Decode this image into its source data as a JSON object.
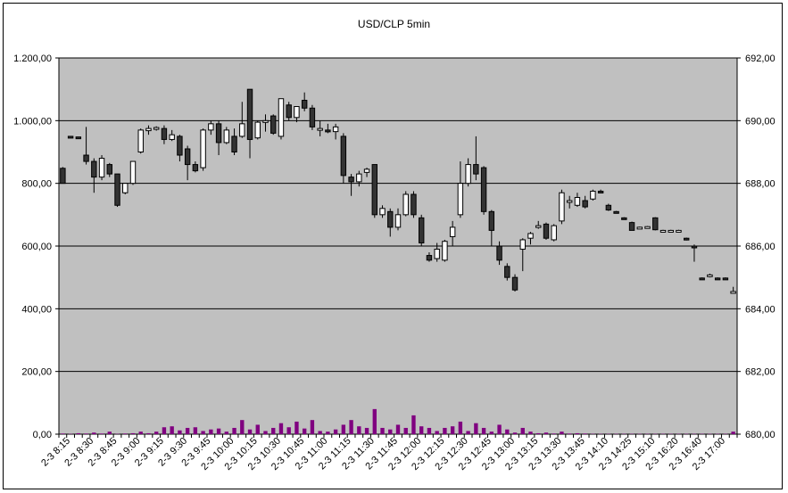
{
  "chart_data": {
    "type": "candlestick",
    "title": "USD/CLP  5min",
    "y_left": {
      "min": 0,
      "max": 1200,
      "step": 200,
      "tick_labels": [
        "0,00",
        "200,00",
        "400,00",
        "600,00",
        "800,00",
        "1.000,00",
        "1.200,00"
      ]
    },
    "y_right": {
      "min": 680,
      "max": 692,
      "step": 2,
      "tick_labels": [
        "680,00",
        "682,00",
        "684,00",
        "686,00",
        "688,00",
        "690,00",
        "692,00"
      ]
    },
    "grid": true,
    "plot_background": "#c0c0c0",
    "colors": {
      "up": "#ffffff",
      "down": "#333333",
      "volume": "#800080"
    },
    "x_tick_labels": [
      "2-3 8:15",
      "2-3 8:30",
      "2-3 8:45",
      "2-3 9:00",
      "2-3 9:15",
      "2-3 9:30",
      "2-3 9:45",
      "2-3 10:00",
      "2-3 10:15",
      "2-3 10:30",
      "2-3 10:45",
      "2-3 11:00",
      "2-3 11:15",
      "2-3 11:30",
      "2-3 11:45",
      "2-3 12:00",
      "2-3 12:15",
      "2-3 12:30",
      "2-3 12:45",
      "2-3 13:00",
      "2-3 13:15",
      "2-3 13:30",
      "2-3 13:45",
      "2-3 14:10",
      "2-3 14:25",
      "2-3 15:10",
      "2-3 16:20",
      "2-3 16:40",
      "2-3 17:00"
    ],
    "candles": [
      {
        "o": 848,
        "h": 852,
        "l": 800,
        "c": 800
      },
      {
        "o": 950,
        "h": 950,
        "l": 948,
        "c": 948
      },
      {
        "o": 948,
        "h": 948,
        "l": 946,
        "c": 946
      },
      {
        "o": 890,
        "h": 980,
        "l": 860,
        "c": 870
      },
      {
        "o": 870,
        "h": 880,
        "l": 770,
        "c": 820
      },
      {
        "o": 820,
        "h": 890,
        "l": 810,
        "c": 880
      },
      {
        "o": 860,
        "h": 865,
        "l": 820,
        "c": 830
      },
      {
        "o": 830,
        "h": 830,
        "l": 725,
        "c": 730
      },
      {
        "o": 770,
        "h": 800,
        "l": 765,
        "c": 800
      },
      {
        "o": 800,
        "h": 870,
        "l": 795,
        "c": 870
      },
      {
        "o": 900,
        "h": 975,
        "l": 895,
        "c": 970
      },
      {
        "o": 968,
        "h": 985,
        "l": 955,
        "c": 975
      },
      {
        "o": 975,
        "h": 982,
        "l": 968,
        "c": 978
      },
      {
        "o": 975,
        "h": 985,
        "l": 925,
        "c": 940
      },
      {
        "o": 940,
        "h": 970,
        "l": 935,
        "c": 955
      },
      {
        "o": 950,
        "h": 955,
        "l": 870,
        "c": 890
      },
      {
        "o": 910,
        "h": 920,
        "l": 810,
        "c": 860
      },
      {
        "o": 860,
        "h": 870,
        "l": 835,
        "c": 840
      },
      {
        "o": 850,
        "h": 975,
        "l": 840,
        "c": 970
      },
      {
        "o": 970,
        "h": 1000,
        "l": 955,
        "c": 990
      },
      {
        "o": 990,
        "h": 1000,
        "l": 890,
        "c": 930
      },
      {
        "o": 930,
        "h": 980,
        "l": 925,
        "c": 970
      },
      {
        "o": 950,
        "h": 975,
        "l": 890,
        "c": 900
      },
      {
        "o": 950,
        "h": 1060,
        "l": 945,
        "c": 990
      },
      {
        "o": 1100,
        "h": 1100,
        "l": 880,
        "c": 940
      },
      {
        "o": 945,
        "h": 1000,
        "l": 940,
        "c": 995
      },
      {
        "o": 995,
        "h": 1020,
        "l": 965,
        "c": 1000
      },
      {
        "o": 1015,
        "h": 1020,
        "l": 955,
        "c": 960
      },
      {
        "o": 950,
        "h": 1070,
        "l": 940,
        "c": 1070
      },
      {
        "o": 1050,
        "h": 1060,
        "l": 1000,
        "c": 1010
      },
      {
        "o": 1010,
        "h": 1045,
        "l": 995,
        "c": 1045
      },
      {
        "o": 1065,
        "h": 1090,
        "l": 1030,
        "c": 1040
      },
      {
        "o": 1040,
        "h": 1050,
        "l": 970,
        "c": 980
      },
      {
        "o": 975,
        "h": 1000,
        "l": 950,
        "c": 975
      },
      {
        "o": 970,
        "h": 990,
        "l": 960,
        "c": 965
      },
      {
        "o": 965,
        "h": 990,
        "l": 940,
        "c": 980
      },
      {
        "o": 950,
        "h": 960,
        "l": 800,
        "c": 825
      },
      {
        "o": 820,
        "h": 830,
        "l": 760,
        "c": 805
      },
      {
        "o": 805,
        "h": 840,
        "l": 790,
        "c": 830
      },
      {
        "o": 835,
        "h": 850,
        "l": 820,
        "c": 845
      },
      {
        "o": 860,
        "h": 860,
        "l": 690,
        "c": 700
      },
      {
        "o": 700,
        "h": 730,
        "l": 690,
        "c": 720
      },
      {
        "o": 710,
        "h": 720,
        "l": 630,
        "c": 660
      },
      {
        "o": 660,
        "h": 720,
        "l": 650,
        "c": 700
      },
      {
        "o": 700,
        "h": 775,
        "l": 695,
        "c": 765
      },
      {
        "o": 765,
        "h": 775,
        "l": 690,
        "c": 700
      },
      {
        "o": 690,
        "h": 700,
        "l": 600,
        "c": 610
      },
      {
        "o": 570,
        "h": 580,
        "l": 550,
        "c": 555
      },
      {
        "o": 560,
        "h": 610,
        "l": 550,
        "c": 590
      },
      {
        "o": 555,
        "h": 620,
        "l": 550,
        "c": 615
      },
      {
        "o": 630,
        "h": 680,
        "l": 600,
        "c": 660
      },
      {
        "o": 700,
        "h": 870,
        "l": 690,
        "c": 800
      },
      {
        "o": 800,
        "h": 880,
        "l": 790,
        "c": 860
      },
      {
        "o": 860,
        "h": 950,
        "l": 810,
        "c": 830
      },
      {
        "o": 850,
        "h": 855,
        "l": 700,
        "c": 710
      },
      {
        "o": 710,
        "h": 715,
        "l": 600,
        "c": 650
      },
      {
        "o": 600,
        "h": 615,
        "l": 540,
        "c": 555
      },
      {
        "o": 535,
        "h": 545,
        "l": 490,
        "c": 500
      },
      {
        "o": 500,
        "h": 510,
        "l": 455,
        "c": 460
      },
      {
        "o": 590,
        "h": 625,
        "l": 520,
        "c": 620
      },
      {
        "o": 625,
        "h": 645,
        "l": 605,
        "c": 640
      },
      {
        "o": 660,
        "h": 680,
        "l": 655,
        "c": 665
      },
      {
        "o": 670,
        "h": 675,
        "l": 620,
        "c": 625
      },
      {
        "o": 620,
        "h": 670,
        "l": 615,
        "c": 665
      },
      {
        "o": 680,
        "h": 780,
        "l": 670,
        "c": 770
      },
      {
        "o": 745,
        "h": 760,
        "l": 720,
        "c": 745
      },
      {
        "o": 730,
        "h": 770,
        "l": 725,
        "c": 755
      },
      {
        "o": 745,
        "h": 760,
        "l": 720,
        "c": 725
      },
      {
        "o": 750,
        "h": 780,
        "l": 745,
        "c": 775
      },
      {
        "o": 775,
        "h": 780,
        "l": 770,
        "c": 772
      },
      {
        "o": 730,
        "h": 735,
        "l": 712,
        "c": 715
      },
      {
        "o": 710,
        "h": 712,
        "l": 705,
        "c": 708
      },
      {
        "o": 690,
        "h": 692,
        "l": 686,
        "c": 688
      },
      {
        "o": 675,
        "h": 678,
        "l": 650,
        "c": 650
      },
      {
        "o": 660,
        "h": 662,
        "l": 658,
        "c": 660
      },
      {
        "o": 662,
        "h": 664,
        "l": 660,
        "c": 662
      },
      {
        "o": 690,
        "h": 692,
        "l": 650,
        "c": 652
      },
      {
        "o": 650,
        "h": 652,
        "l": 648,
        "c": 650
      },
      {
        "o": 650,
        "h": 652,
        "l": 648,
        "c": 650
      },
      {
        "o": 650,
        "h": 652,
        "l": 648,
        "c": 650
      },
      {
        "o": 625,
        "h": 627,
        "l": 618,
        "c": 620
      },
      {
        "o": 600,
        "h": 605,
        "l": 550,
        "c": 598
      },
      {
        "o": 498,
        "h": 500,
        "l": 495,
        "c": 497
      },
      {
        "o": 505,
        "h": 512,
        "l": 500,
        "c": 508
      },
      {
        "o": 498,
        "h": 500,
        "l": 495,
        "c": 497
      },
      {
        "o": 498,
        "h": 500,
        "l": 495,
        "c": 497
      },
      {
        "o": 455,
        "h": 470,
        "l": 450,
        "c": 455
      }
    ],
    "volume": [
      2,
      1,
      3,
      2,
      5,
      2,
      8,
      1,
      2,
      3,
      8,
      3,
      8,
      22,
      25,
      12,
      20,
      22,
      10,
      15,
      18,
      8,
      20,
      45,
      15,
      30,
      10,
      20,
      35,
      22,
      40,
      18,
      45,
      10,
      8,
      15,
      30,
      45,
      25,
      20,
      80,
      20,
      15,
      30,
      20,
      60,
      25,
      20,
      10,
      20,
      25,
      40,
      10,
      35,
      20,
      8,
      30,
      15,
      5,
      20,
      8,
      3,
      5,
      2,
      8,
      2,
      3,
      2,
      1,
      1,
      1,
      1,
      1,
      1,
      1,
      1,
      1,
      1,
      1,
      1,
      1,
      1,
      1,
      1,
      1,
      1,
      8
    ]
  }
}
